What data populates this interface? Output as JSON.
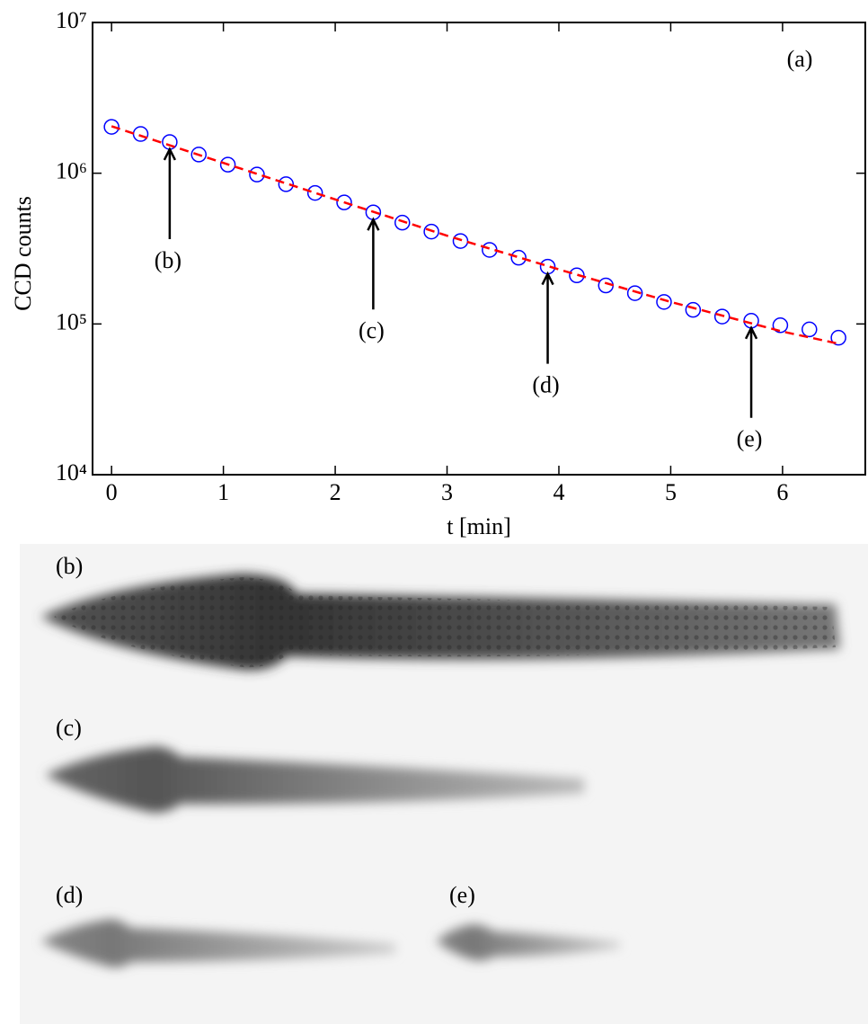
{
  "chart_data": {
    "type": "scatter",
    "panel_label": "(a)",
    "x_label": "t [min]",
    "y_label": "CCD counts",
    "log_y": true,
    "xlim": [
      -0.17,
      6.74
    ],
    "ylim": [
      10000,
      10000000
    ],
    "xticks": [
      0,
      1,
      2,
      3,
      4,
      5,
      6
    ],
    "yticks": [
      {
        "value": 10000,
        "label": "10⁴"
      },
      {
        "value": 100000,
        "label": "10⁵"
      },
      {
        "value": 1000000,
        "label": "10⁶"
      },
      {
        "value": 10000000,
        "label": "10⁷"
      }
    ],
    "series": [
      {
        "kind": "markers",
        "color": "#0000ff",
        "x": [
          0,
          0.26,
          0.52,
          0.78,
          1.04,
          1.3,
          1.56,
          1.82,
          2.08,
          2.34,
          2.6,
          2.86,
          3.12,
          3.38,
          3.64,
          3.9,
          4.16,
          4.42,
          4.68,
          4.94,
          5.2,
          5.46,
          5.72,
          5.98,
          6.24,
          6.5
        ],
        "values": [
          2030000,
          1820000,
          1610000,
          1330000,
          1140000,
          980000,
          845000,
          740000,
          640000,
          550000,
          470000,
          410000,
          355000,
          310000,
          275000,
          240000,
          210000,
          180000,
          160000,
          140000,
          124000,
          112000,
          105000,
          98000,
          92000,
          81000
        ]
      },
      {
        "kind": "dashed-line",
        "color": "#ff0000",
        "x": [
          0,
          1,
          2,
          3,
          4,
          5,
          6,
          6.5
        ],
        "values": [
          2050000,
          1170000,
          670000,
          385000,
          230000,
          140000,
          89000,
          74000
        ]
      }
    ],
    "annotations": [
      {
        "text": "(b)",
        "x": 0.52,
        "y": 1610000
      },
      {
        "text": "(c)",
        "x": 2.34,
        "y": 550000
      },
      {
        "text": "(d)",
        "x": 3.9,
        "y": 240000
      },
      {
        "text": "(e)",
        "x": 5.72,
        "y": 105000
      }
    ]
  },
  "images": [
    {
      "label": "(b)"
    },
    {
      "label": "(c)"
    },
    {
      "label": "(d)"
    },
    {
      "label": "(e)"
    }
  ]
}
